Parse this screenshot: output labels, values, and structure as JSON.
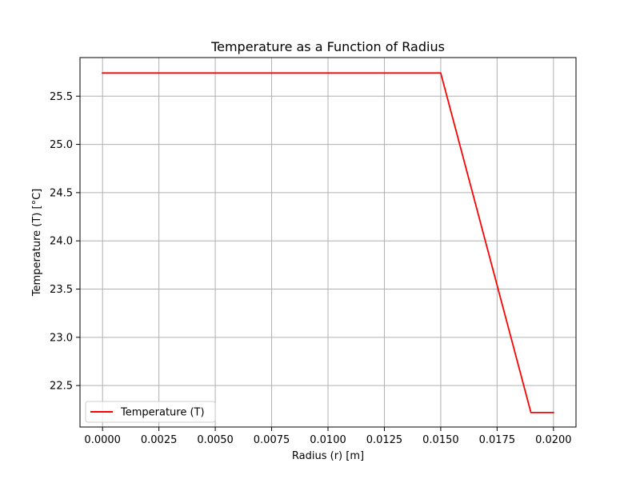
{
  "chart_data": {
    "type": "line",
    "title": "Temperature as a Function of Radius",
    "xlabel": "Radius (r) [m]",
    "ylabel": "Temperature (T) [°C]",
    "xlim": [
      -0.001,
      0.021
    ],
    "ylim": [
      22.07,
      25.9
    ],
    "xticks": [
      0.0,
      0.0025,
      0.005,
      0.0075,
      0.01,
      0.0125,
      0.015,
      0.0175,
      0.02
    ],
    "xtick_labels": [
      "0.0000",
      "0.0025",
      "0.0050",
      "0.0075",
      "0.0100",
      "0.0125",
      "0.0150",
      "0.0175",
      "0.0200"
    ],
    "yticks": [
      22.5,
      23.0,
      23.5,
      24.0,
      24.5,
      25.0,
      25.5
    ],
    "ytick_labels": [
      "22.5",
      "23.0",
      "23.5",
      "24.0",
      "24.5",
      "25.0",
      "25.5"
    ],
    "grid": true,
    "legend": {
      "placement": "lower-left",
      "entries": [
        "Temperature (T)"
      ]
    },
    "series": [
      {
        "name": "Temperature (T)",
        "color": "#ff0000",
        "x": [
          0.0,
          0.015,
          0.019,
          0.02
        ],
        "y": [
          25.74,
          25.74,
          22.22,
          22.22
        ]
      }
    ]
  }
}
